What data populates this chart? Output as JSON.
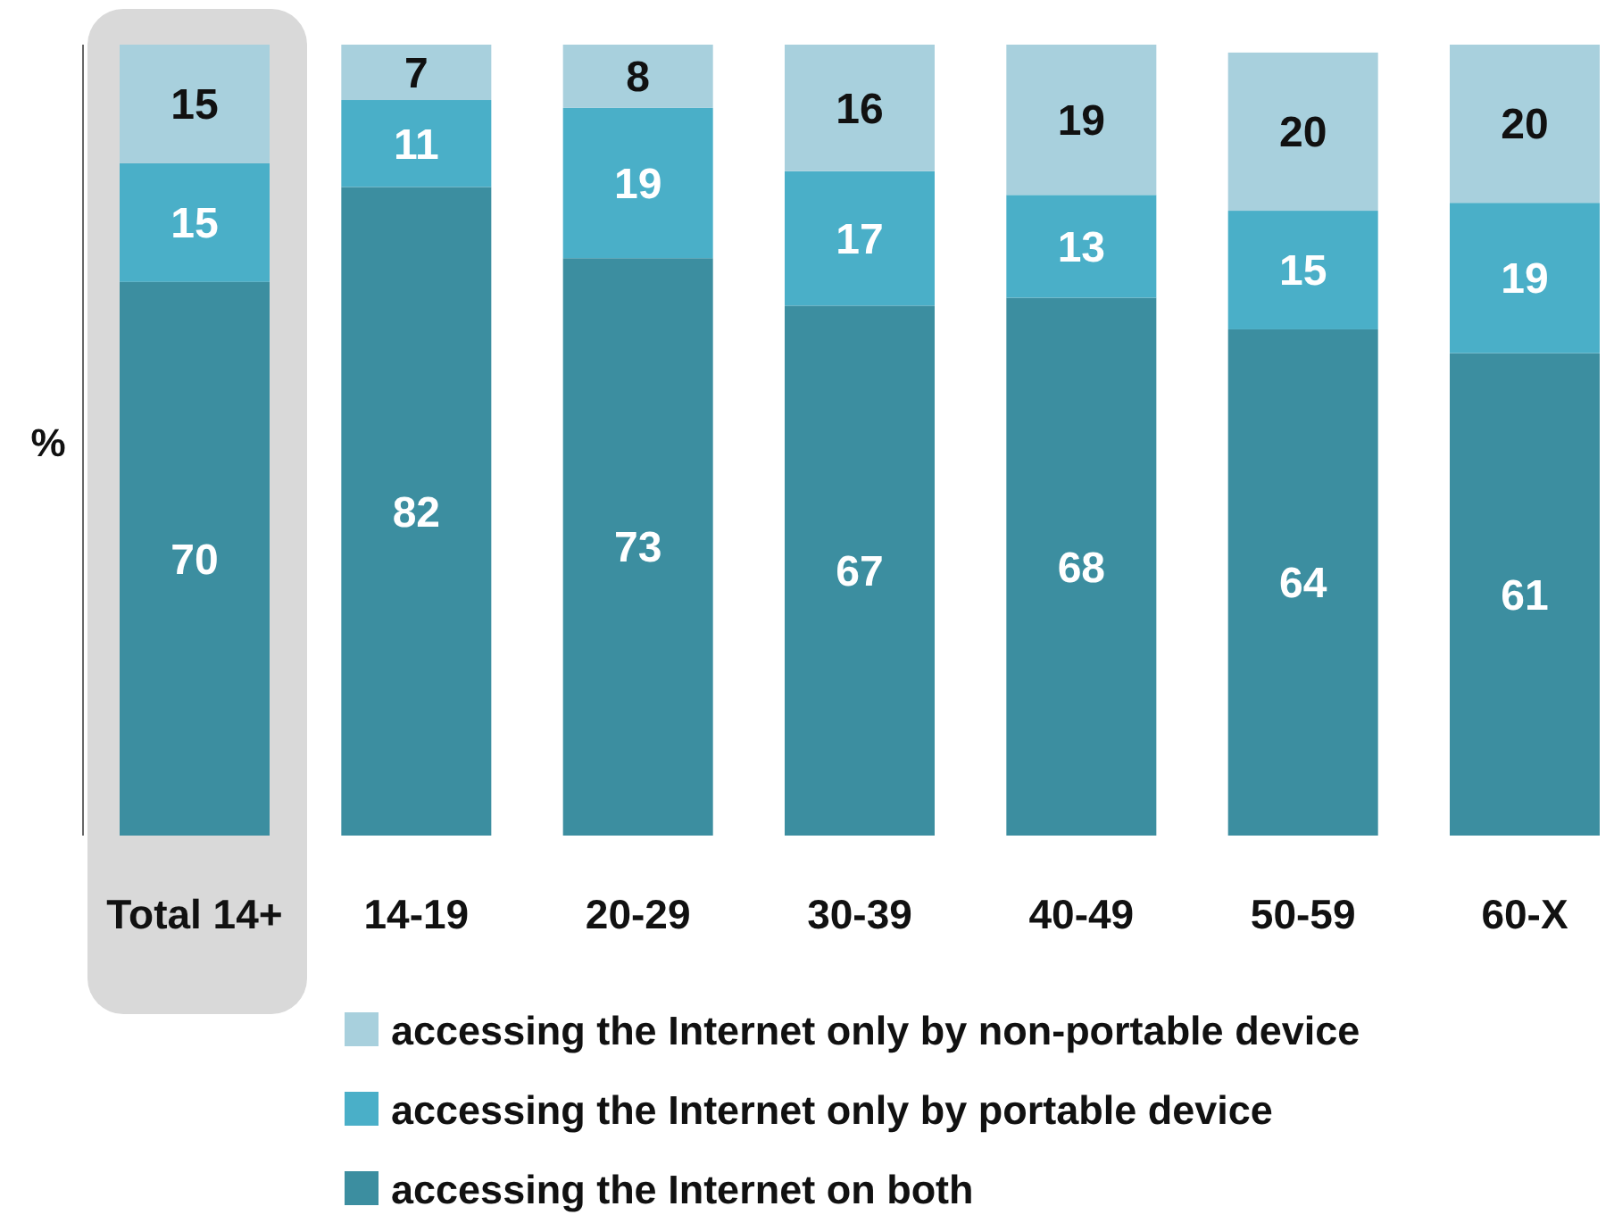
{
  "chart_data": {
    "type": "bar",
    "stacked": true,
    "ylabel": "%",
    "categories": [
      "Total 14+",
      "14-19",
      "20-29",
      "30-39",
      "40-49",
      "50-59",
      "60-X"
    ],
    "ylim": [
      0,
      100
    ],
    "data_labels": true,
    "legend": "bottom",
    "bands": [
      {
        "axis": "x",
        "from": "Total 14+",
        "to": "Total 14+",
        "color": "#d9d9d9"
      }
    ],
    "series": [
      {
        "name": "accessing the Internet on both",
        "color": "#3c8ea0",
        "values": [
          70,
          82,
          73,
          67,
          68,
          64,
          61
        ]
      },
      {
        "name": "accessing the Internet only by portable device",
        "color": "#4aafc8",
        "values": [
          15,
          11,
          19,
          17,
          13,
          15,
          19
        ]
      },
      {
        "name": "accessing the Internet only by non-portable device",
        "color": "#a8d0dd",
        "values": [
          15,
          7,
          8,
          16,
          19,
          20,
          20
        ]
      }
    ]
  }
}
